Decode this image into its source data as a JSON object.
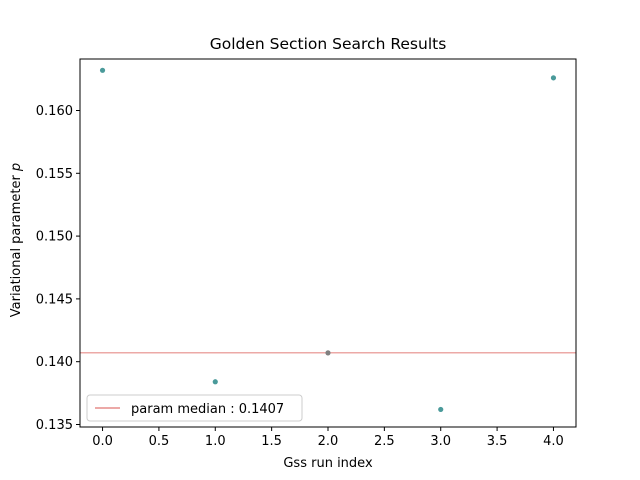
{
  "chart_data": {
    "type": "scatter",
    "title": "Golden Section Search Results",
    "xlabel": "Gss run index",
    "ylabel_main": "Variational parameter ",
    "ylabel_symbol": "p",
    "xlim": [
      -0.2,
      4.2
    ],
    "ylim": [
      0.1348,
      0.1641
    ],
    "xticks": [
      0.0,
      0.5,
      1.0,
      1.5,
      2.0,
      2.5,
      3.0,
      3.5,
      4.0
    ],
    "xtick_labels": [
      "0.0",
      "0.5",
      "1.0",
      "1.5",
      "2.0",
      "2.5",
      "3.0",
      "3.5",
      "4.0"
    ],
    "yticks": [
      0.135,
      0.14,
      0.145,
      0.15,
      0.155,
      0.16
    ],
    "ytick_labels": [
      "0.135",
      "0.140",
      "0.145",
      "0.150",
      "0.155",
      "0.160"
    ],
    "grid": false,
    "legend_position": "lower-left",
    "points": [
      {
        "x": 0,
        "y": 0.1632,
        "color": "#4a9a9a"
      },
      {
        "x": 1,
        "y": 0.1384,
        "color": "#4a9a9a"
      },
      {
        "x": 2,
        "y": 0.1407,
        "color": "#808080"
      },
      {
        "x": 3,
        "y": 0.1362,
        "color": "#4a9a9a"
      },
      {
        "x": 4,
        "y": 0.1626,
        "color": "#4a9a9a"
      }
    ],
    "median_line": {
      "y": 0.1407,
      "color": "#d9534f",
      "label": "param median : 0.1407"
    }
  }
}
